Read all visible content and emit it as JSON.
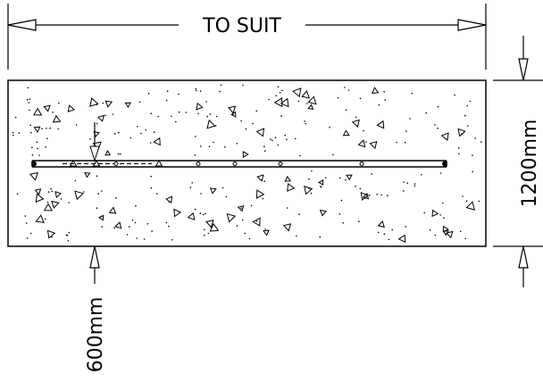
{
  "labels": {
    "length": "TO SUIT",
    "height": "1200mm",
    "depth": "600mm"
  }
}
